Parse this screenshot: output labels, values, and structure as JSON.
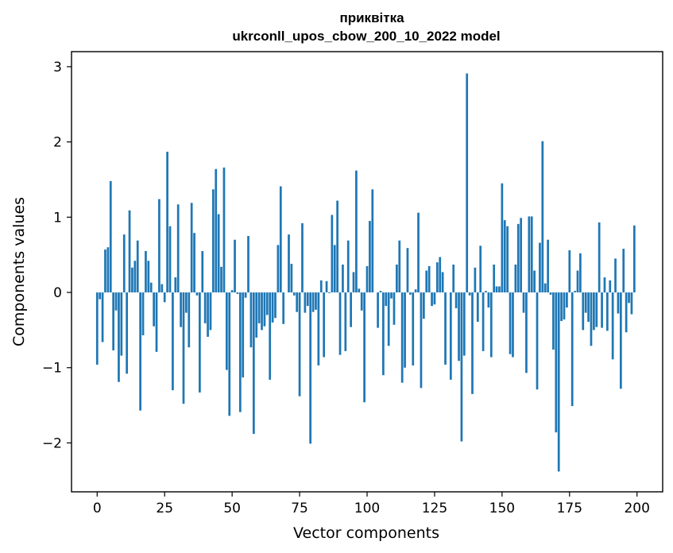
{
  "chart_data": {
    "type": "bar",
    "title": "приквітка",
    "subtitle": "ukrconll_upos_cbow_200_10_2022 model",
    "xlabel": "Vector components",
    "ylabel": "Components values",
    "xlim": [
      -9.5,
      209.5
    ],
    "ylim": [
      -2.65,
      3.2
    ],
    "xticks": [
      0,
      25,
      50,
      75,
      100,
      125,
      150,
      175,
      200
    ],
    "xtick_labels": [
      "0",
      "25",
      "50",
      "75",
      "100",
      "125",
      "150",
      "175",
      "200"
    ],
    "yticks": [
      -2,
      -1,
      0,
      1,
      2,
      3
    ],
    "ytick_labels": [
      "−2",
      "−1",
      "0",
      "1",
      "2",
      "3"
    ],
    "grid": false,
    "bar_color": "#1f77b4",
    "x": [
      0,
      1,
      2,
      3,
      4,
      5,
      6,
      7,
      8,
      9,
      10,
      11,
      12,
      13,
      14,
      15,
      16,
      17,
      18,
      19,
      20,
      21,
      22,
      23,
      24,
      25,
      26,
      27,
      28,
      29,
      30,
      31,
      32,
      33,
      34,
      35,
      36,
      37,
      38,
      39,
      40,
      41,
      42,
      43,
      44,
      45,
      46,
      47,
      48,
      49,
      50,
      51,
      52,
      53,
      54,
      55,
      56,
      57,
      58,
      59,
      60,
      61,
      62,
      63,
      64,
      65,
      66,
      67,
      68,
      69,
      70,
      71,
      72,
      73,
      74,
      75,
      76,
      77,
      78,
      79,
      80,
      81,
      82,
      83,
      84,
      85,
      86,
      87,
      88,
      89,
      90,
      91,
      92,
      93,
      94,
      95,
      96,
      97,
      98,
      99,
      100,
      101,
      102,
      103,
      104,
      105,
      106,
      107,
      108,
      109,
      110,
      111,
      112,
      113,
      114,
      115,
      116,
      117,
      118,
      119,
      120,
      121,
      122,
      123,
      124,
      125,
      126,
      127,
      128,
      129,
      130,
      131,
      132,
      133,
      134,
      135,
      136,
      137,
      138,
      139,
      140,
      141,
      142,
      143,
      144,
      145,
      146,
      147,
      148,
      149,
      150,
      151,
      152,
      153,
      154,
      155,
      156,
      157,
      158,
      159,
      160,
      161,
      162,
      163,
      164,
      165,
      166,
      167,
      168,
      169,
      170,
      171,
      172,
      173,
      174,
      175,
      176,
      177,
      178,
      179,
      180,
      181,
      182,
      183,
      184,
      185,
      186,
      187,
      188,
      189,
      190,
      191,
      192,
      193,
      194,
      195,
      196,
      197,
      198,
      199
    ],
    "values": [
      -0.96,
      -0.09,
      -0.66,
      0.57,
      0.6,
      1.48,
      -0.77,
      -0.24,
      -1.19,
      -0.84,
      0.77,
      -1.08,
      1.09,
      0.33,
      0.42,
      0.69,
      -1.57,
      -0.57,
      0.55,
      0.42,
      0.13,
      -0.45,
      -0.79,
      1.24,
      0.11,
      -0.13,
      1.87,
      0.88,
      -1.3,
      0.2,
      1.17,
      -0.46,
      -1.48,
      -0.27,
      -0.73,
      1.19,
      0.79,
      -0.04,
      -1.33,
      0.55,
      -0.41,
      -0.59,
      -0.5,
      1.37,
      1.64,
      1.04,
      0.34,
      1.66,
      -1.03,
      -1.64,
      0.03,
      0.7,
      -0.02,
      -1.59,
      -1.13,
      -0.07,
      0.75,
      -0.73,
      -1.88,
      -0.6,
      -0.41,
      -0.5,
      -0.45,
      -0.3,
      -1.16,
      -0.4,
      -0.34,
      0.63,
      1.41,
      -0.42,
      0.0,
      0.77,
      0.38,
      -0.04,
      -0.26,
      -1.38,
      0.92,
      -0.27,
      -0.18,
      -2.01,
      -0.26,
      -0.23,
      -0.97,
      0.16,
      -0.86,
      0.15,
      -0.01,
      1.03,
      0.63,
      1.22,
      -0.83,
      0.37,
      -0.78,
      0.69,
      -0.46,
      0.27,
      1.62,
      0.05,
      -0.24,
      -1.46,
      0.35,
      0.95,
      1.37,
      0.0,
      -0.47,
      0.02,
      -1.1,
      -0.18,
      -0.71,
      -0.08,
      -0.43,
      0.37,
      0.69,
      -1.2,
      -1.0,
      0.59,
      -0.03,
      -0.97,
      0.04,
      1.06,
      -1.27,
      -0.35,
      0.29,
      0.35,
      -0.18,
      -0.16,
      0.4,
      0.47,
      0.27,
      -0.96,
      0.0,
      -1.16,
      0.37,
      -0.21,
      -0.91,
      -1.98,
      -0.84,
      2.91,
      -0.04,
      -1.35,
      0.33,
      -0.39,
      0.62,
      -0.78,
      0.02,
      -0.2,
      -0.86,
      0.37,
      0.08,
      0.08,
      1.45,
      0.96,
      0.88,
      -0.82,
      -0.86,
      0.37,
      0.91,
      0.99,
      -0.27,
      -1.07,
      1.01,
      1.01,
      0.29,
      -1.29,
      0.66,
      2.01,
      0.12,
      0.7,
      -0.03,
      -0.76,
      -1.86,
      -2.38,
      -0.38,
      -0.36,
      -0.2,
      0.56,
      -1.51,
      0.02,
      0.29,
      0.52,
      -0.5,
      -0.27,
      -0.39,
      -0.71,
      -0.5,
      -0.46,
      0.93,
      -0.47,
      0.2,
      -0.51,
      0.16,
      -0.89,
      0.45,
      -0.28,
      -1.28,
      0.58,
      -0.53,
      -0.14,
      -0.29,
      0.89
    ]
  }
}
